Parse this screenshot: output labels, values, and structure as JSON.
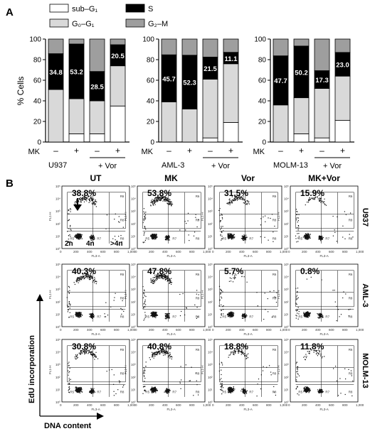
{
  "panel_labels": {
    "a": "A",
    "b": "B"
  },
  "legend": [
    {
      "label": "sub–G₁",
      "color": "#ffffff"
    },
    {
      "label": "S",
      "color": "#000000"
    },
    {
      "label": "G₀–G₁",
      "color": "#d9d9d9"
    },
    {
      "label": "G₂–M",
      "color": "#9e9e9e"
    }
  ],
  "colors": {
    "subg1": "#ffffff",
    "g0g1": "#d9d9d9",
    "s": "#000000",
    "g2m": "#9e9e9e",
    "dots": "#111111"
  },
  "row_labels": {
    "mk": "MK",
    "vor": "+ Vor",
    "minus": "–",
    "plus": "+"
  },
  "chart_data": [
    {
      "type": "bar",
      "stacked": true,
      "ylabel": "% Cells",
      "ylim": [
        0,
        100
      ],
      "yticks": [
        0,
        20,
        40,
        60,
        80,
        100
      ],
      "cell_line": "U937",
      "treatments": [
        "–",
        "+",
        "–",
        "+"
      ],
      "series": [
        {
          "name": "sub–G₁",
          "values": [
            0,
            8,
            8,
            35
          ]
        },
        {
          "name": "G₀–G₁",
          "values": [
            51,
            34,
            32,
            39
          ]
        },
        {
          "name": "S",
          "values": [
            34.8,
            53.2,
            28.5,
            20.5
          ]
        },
        {
          "name": "G₂–M",
          "values": [
            14.2,
            4.8,
            31.5,
            5.5
          ]
        }
      ],
      "s_labels": [
        "34.8",
        "53.2",
        "28.5",
        "20.5"
      ]
    },
    {
      "type": "bar",
      "stacked": true,
      "ylim": [
        0,
        100
      ],
      "yticks": [
        0,
        20,
        40,
        60,
        80,
        100
      ],
      "cell_line": "AML-3",
      "treatments": [
        "–",
        "+",
        "–",
        "+"
      ],
      "series": [
        {
          "name": "sub–G₁",
          "values": [
            0,
            0,
            4,
            19
          ]
        },
        {
          "name": "G₀–G₁",
          "values": [
            39,
            32,
            57,
            57
          ]
        },
        {
          "name": "S",
          "values": [
            45.7,
            52.3,
            21.5,
            11.1
          ]
        },
        {
          "name": "G₂–M",
          "values": [
            15.3,
            15.7,
            17.5,
            12.9
          ]
        }
      ],
      "s_labels": [
        "45.7",
        "52.3",
        "21.5",
        "11.1"
      ]
    },
    {
      "type": "bar",
      "stacked": true,
      "ylim": [
        0,
        100
      ],
      "yticks": [
        0,
        20,
        40,
        60,
        80,
        100
      ],
      "cell_line": "MOLM-13",
      "treatments": [
        "–",
        "+",
        "–",
        "+"
      ],
      "series": [
        {
          "name": "sub–G₁",
          "values": [
            0,
            8,
            4,
            21
          ]
        },
        {
          "name": "G₀–G₁",
          "values": [
            36,
            35,
            48,
            43
          ]
        },
        {
          "name": "S",
          "values": [
            47.7,
            50.2,
            17.3,
            23.0
          ]
        },
        {
          "name": "G₂–M",
          "values": [
            16.3,
            6.8,
            30.7,
            13.0
          ]
        }
      ],
      "s_labels": [
        "47.7",
        "50.2",
        "17.3",
        "23.0"
      ]
    },
    {
      "type": "scatter",
      "panel": "B",
      "xlabel": "DNA content",
      "ylabel": "EdU incorporation",
      "columns": [
        "UT",
        "MK",
        "Vor",
        "MK+Vor"
      ],
      "rows": [
        "U937",
        "AML-3",
        "MOLM-13"
      ],
      "percentages": [
        [
          "38.8%",
          "53.8%",
          "31.5%",
          "15.9%"
        ],
        [
          "40.3%",
          "47.8%",
          "5.7%",
          "0.8%"
        ],
        [
          "30.8%",
          "40.8%",
          "18.8%",
          "11.8%"
        ]
      ],
      "ploidy_labels": [
        "2n",
        "4n",
        ">4n"
      ],
      "x_ticks": [
        "0",
        "200",
        "400",
        "600",
        "800",
        "1,000"
      ],
      "y_ticks": [
        "10⁰",
        "10¹",
        "10²",
        "10³",
        "10⁴",
        "10⁵"
      ],
      "plot_x_axis": "FL3-A",
      "plot_y_axis": "FL1-H",
      "gate_labels": [
        "R5",
        "R6",
        "R7",
        "R8",
        "R9",
        "R10"
      ]
    }
  ]
}
